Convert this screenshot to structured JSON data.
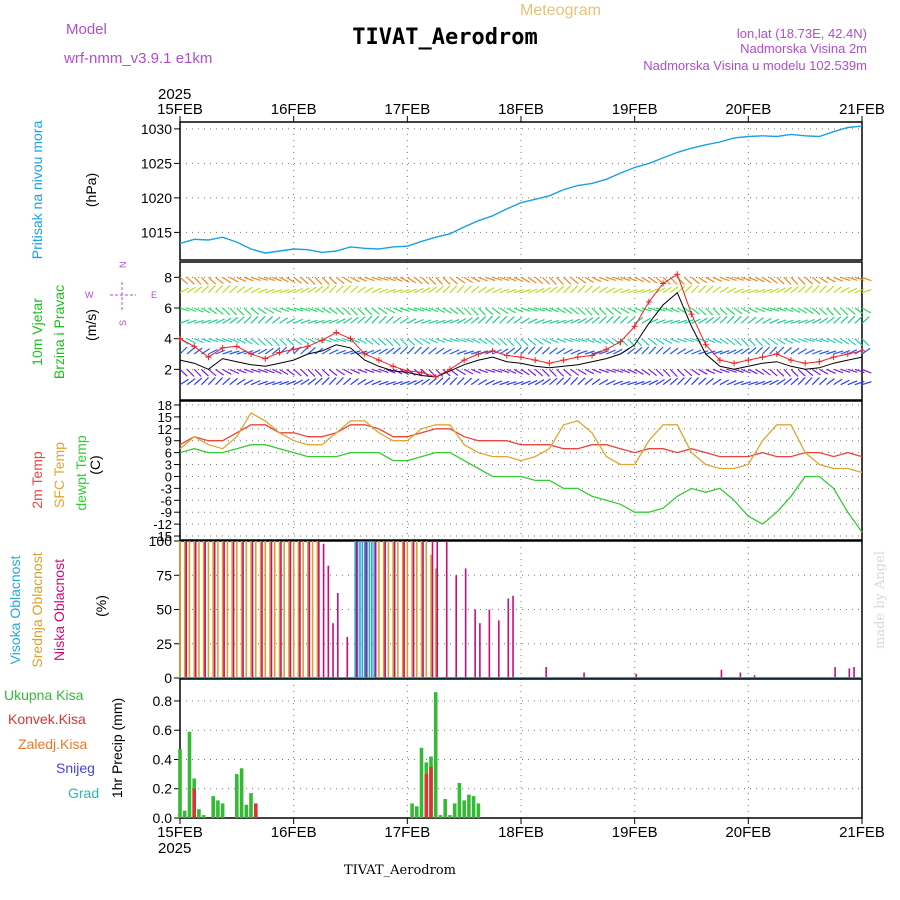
{
  "header": {
    "model_label": "Model",
    "model_name": "wrf-nmm_v3.9.1  e1km",
    "product": "Meteogram",
    "station": "TIVAT_Aerodrom",
    "lonlat": "lon,lat (18.73E, 42.4N)",
    "elevation": "Nadmorska Visina 2m",
    "model_elevation": "Nadmorska Visina u modelu 102.539m"
  },
  "footer": {
    "station": "TIVAT_Aerodrom",
    "credit": "made by Angel"
  },
  "time_axis": {
    "year": "2025",
    "days": [
      "15FEB",
      "16FEB",
      "17FEB",
      "18FEB",
      "19FEB",
      "20FEB",
      "21FEB"
    ],
    "range_hours": [
      0,
      144
    ]
  },
  "colors": {
    "pressure": "#1ba1e2",
    "t2m": "#e8453c",
    "sfc": "#e0a630",
    "dewpt": "#33cc33",
    "high_cloud": "#2aa7d6",
    "mid_cloud": "#d8a12e",
    "low_cloud": "#cc0a78",
    "total_precip": "#33bb33",
    "conv_precip": "#dd3333",
    "frozen_precip": "#ee7722",
    "snow": "#4444dd",
    "graupel": "#22bbbb",
    "purple_text": "#b04cd4",
    "wind_gust": "#ee2222",
    "wind_mean": "#000000"
  },
  "panels": {
    "pressure": {
      "label": "Pritisak na nivou mora",
      "unit": "(hPa)"
    },
    "wind": {
      "label1": "10m Vjetar",
      "label2": "Brzina i Pravac",
      "unit": "(m/s)",
      "compass": {
        "n": "N",
        "s": "S",
        "w": "W",
        "e": "E"
      }
    },
    "temp": {
      "label1": "2m Temp",
      "label2": "SFC Temp",
      "label3": "dewpt Temp",
      "unit": "(C)"
    },
    "cloud": {
      "label1": "Visoka Oblacnost",
      "label2": "Srednja Oblacnost",
      "label3": "Niska Oblacnost",
      "unit": "(%)"
    },
    "precip": {
      "legend": [
        "Ukupna Kisa",
        "Konvek.Kisa",
        "Zaledj.Kisa",
        "Snijeg",
        "Grad"
      ],
      "unit": "1hr Precip (mm)"
    }
  },
  "chart_data": [
    {
      "type": "line",
      "panel": "pressure",
      "xunit": "hours since 15FEB 00UTC",
      "ylim": [
        1011,
        1031
      ],
      "yticks": [
        1015,
        1020,
        1025,
        1030
      ],
      "x": [
        0,
        3,
        6,
        9,
        12,
        15,
        18,
        21,
        24,
        27,
        30,
        33,
        36,
        39,
        42,
        45,
        48,
        51,
        54,
        57,
        60,
        63,
        66,
        69,
        72,
        75,
        78,
        81,
        84,
        87,
        90,
        93,
        96,
        99,
        102,
        105,
        108,
        111,
        114,
        117,
        120,
        123,
        126,
        129,
        132,
        135,
        138,
        141,
        144
      ],
      "series": [
        {
          "name": "",
          "color_key": "pressure",
          "values": [
            1013.4,
            1014.0,
            1013.9,
            1014.3,
            1013.6,
            1012.6,
            1012.0,
            1012.3,
            1012.6,
            1012.5,
            1012.1,
            1012.3,
            1012.9,
            1012.7,
            1012.6,
            1012.9,
            1013.0,
            1013.7,
            1014.3,
            1014.8,
            1015.8,
            1016.7,
            1017.4,
            1018.4,
            1019.3,
            1019.8,
            1020.3,
            1021.2,
            1021.8,
            1022.1,
            1022.7,
            1023.6,
            1024.4,
            1025.0,
            1025.8,
            1026.6,
            1027.2,
            1027.7,
            1028.1,
            1028.7,
            1028.9,
            1029.0,
            1028.9,
            1029.2,
            1029.0,
            1028.9,
            1029.6,
            1030.2,
            1030.4
          ]
        }
      ]
    },
    {
      "type": "line",
      "panel": "wind",
      "ylim": [
        0,
        9
      ],
      "yticks": [
        2,
        4,
        6,
        8
      ],
      "x": [
        0,
        3,
        6,
        9,
        12,
        15,
        18,
        21,
        24,
        27,
        30,
        33,
        36,
        39,
        42,
        45,
        48,
        51,
        54,
        57,
        60,
        63,
        66,
        69,
        72,
        75,
        78,
        81,
        84,
        87,
        90,
        93,
        96,
        99,
        102,
        105,
        108,
        111,
        114,
        117,
        120,
        123,
        126,
        129,
        132,
        135,
        138,
        141,
        144
      ],
      "series": [
        {
          "name": "",
          "color_key": "wind_mean",
          "values": [
            2.6,
            2.4,
            2.0,
            2.7,
            2.5,
            2.3,
            2.2,
            2.4,
            2.6,
            3.0,
            3.2,
            3.6,
            3.4,
            2.6,
            2.2,
            1.9,
            1.8,
            1.6,
            1.5,
            1.9,
            2.3,
            2.6,
            2.8,
            2.5,
            2.4,
            2.2,
            2.1,
            2.2,
            2.3,
            2.5,
            2.7,
            3.0,
            3.6,
            5.0,
            6.2,
            7.0,
            4.8,
            3.0,
            2.2,
            2.0,
            2.2,
            2.4,
            2.5,
            2.2,
            2.0,
            2.1,
            2.4,
            2.6,
            2.8
          ]
        },
        {
          "name": "",
          "color_key": "wind_gust",
          "values": [
            4.0,
            3.5,
            2.8,
            3.4,
            3.5,
            3.0,
            2.7,
            3.1,
            3.3,
            3.5,
            3.9,
            4.4,
            4.0,
            3.0,
            2.6,
            2.2,
            1.9,
            1.8,
            1.5,
            2.0,
            2.6,
            3.0,
            3.2,
            2.9,
            2.8,
            2.6,
            2.4,
            2.6,
            2.8,
            2.9,
            3.3,
            3.8,
            4.8,
            6.4,
            7.6,
            8.2,
            5.6,
            3.6,
            2.6,
            2.4,
            2.6,
            2.8,
            3.0,
            2.6,
            2.4,
            2.5,
            2.8,
            3.0,
            3.2
          ]
        }
      ],
      "arrow_rows_ms": [
        1,
        2,
        3,
        4,
        5,
        6,
        7,
        8
      ]
    },
    {
      "type": "line",
      "panel": "temp",
      "ylim": [
        -16,
        19
      ],
      "yticks": [
        -15,
        -12,
        -9,
        -6,
        -3,
        0,
        3,
        6,
        9,
        12,
        15,
        18
      ],
      "x": [
        0,
        3,
        6,
        9,
        12,
        15,
        18,
        21,
        24,
        27,
        30,
        33,
        36,
        39,
        42,
        45,
        48,
        51,
        54,
        57,
        60,
        63,
        66,
        69,
        72,
        75,
        78,
        81,
        84,
        87,
        90,
        93,
        96,
        99,
        102,
        105,
        108,
        111,
        114,
        117,
        120,
        123,
        126,
        129,
        132,
        135,
        138,
        141,
        144
      ],
      "series": [
        {
          "name": "2m Temp",
          "color_key": "t2m",
          "values": [
            8,
            10,
            9,
            9,
            11,
            13,
            13,
            11,
            11,
            10,
            10,
            11,
            13,
            13,
            12,
            10,
            10,
            11,
            12,
            12,
            10,
            9,
            9,
            9,
            8,
            8,
            8,
            7,
            7,
            8,
            8,
            7,
            6,
            7,
            7,
            6,
            7,
            6,
            5,
            5,
            5,
            6,
            5,
            5,
            6,
            6,
            5,
            6,
            5
          ]
        },
        {
          "name": "SFC Temp",
          "color_key": "sfc",
          "values": [
            7,
            10,
            8,
            7,
            10,
            16,
            14,
            11,
            9,
            8,
            8,
            11,
            14,
            14,
            11,
            9,
            9,
            12,
            13,
            13,
            8,
            6,
            5,
            5,
            4,
            5,
            7,
            13,
            14,
            11,
            5,
            3,
            3,
            9,
            13,
            13,
            6,
            3,
            2,
            2,
            3,
            9,
            13,
            13,
            6,
            3,
            2,
            2,
            1
          ]
        },
        {
          "name": "dewpt Temp",
          "color_key": "dewpt",
          "values": [
            6,
            7,
            6,
            6,
            7,
            8,
            8,
            7,
            6,
            5,
            5,
            5,
            6,
            6,
            6,
            4,
            4,
            5,
            6,
            6,
            4,
            2,
            0,
            0,
            0,
            -1,
            -1,
            -3,
            -3,
            -5,
            -6,
            -7,
            -9,
            -9,
            -8,
            -5,
            -3,
            -4,
            -3,
            -6,
            -10,
            -12,
            -9,
            -5,
            0,
            0,
            -3,
            -9,
            -14
          ]
        }
      ]
    },
    {
      "type": "bar",
      "panel": "cloud",
      "ylim": [
        0,
        100
      ],
      "yticks": [
        0,
        25,
        50,
        75,
        100
      ],
      "series": [
        {
          "name": "Visoka Oblacnost",
          "color_key": "high_cloud",
          "x": [
            37,
            37.5,
            38,
            38.5,
            39,
            39.5,
            40,
            40.5,
            41
          ],
          "values": [
            100,
            100,
            100,
            100,
            100,
            100,
            100,
            100,
            100
          ]
        },
        {
          "name": "Srednja Oblacnost",
          "color_key": "mid_cloud",
          "x": [
            0,
            1,
            2,
            3,
            4,
            5,
            6,
            7,
            8,
            9,
            10,
            11,
            12,
            13,
            14,
            15,
            16,
            17,
            18,
            19,
            20,
            21,
            22,
            23,
            24,
            25,
            26,
            27,
            28,
            29,
            42,
            43,
            44,
            45,
            46,
            47,
            48,
            49,
            50,
            51,
            52,
            53,
            54
          ],
          "values": [
            100,
            100,
            100,
            100,
            100,
            100,
            100,
            100,
            100,
            100,
            100,
            100,
            100,
            100,
            100,
            100,
            100,
            100,
            100,
            100,
            100,
            100,
            100,
            100,
            100,
            100,
            100,
            100,
            100,
            100,
            100,
            100,
            100,
            100,
            100,
            100,
            100,
            100,
            100,
            100,
            100,
            90,
            80
          ]
        },
        {
          "name": "Niska Oblacnost",
          "color_key": "low_cloud",
          "x": [
            1,
            3,
            5,
            7,
            9,
            11,
            13,
            15,
            17,
            19,
            21,
            23,
            25,
            27,
            29,
            30,
            31,
            32,
            33,
            35,
            37,
            39,
            41,
            43,
            45,
            47,
            49,
            51,
            53,
            54,
            56,
            58,
            60,
            62,
            63,
            65,
            67,
            69,
            70,
            77,
            85,
            96,
            114,
            118,
            121,
            138,
            141,
            142
          ],
          "values": [
            100,
            100,
            100,
            100,
            100,
            100,
            100,
            100,
            100,
            100,
            100,
            100,
            100,
            100,
            100,
            98,
            82,
            40,
            62,
            30,
            100,
            100,
            100,
            100,
            100,
            100,
            100,
            100,
            100,
            100,
            100,
            75,
            80,
            50,
            40,
            50,
            42,
            58,
            60,
            8,
            4,
            3,
            6,
            4,
            2,
            8,
            7,
            8
          ]
        }
      ]
    },
    {
      "type": "bar",
      "panel": "precip",
      "ylim": [
        0,
        0.95
      ],
      "yticks": [
        0.0,
        0.2,
        0.4,
        0.6,
        0.8
      ],
      "series": [
        {
          "name": "Ukupna Kisa",
          "color_key": "total_precip",
          "x": [
            0,
            1,
            2,
            3,
            4,
            5,
            7,
            8,
            9,
            12,
            13,
            14,
            15,
            16,
            49,
            50,
            51,
            52,
            53,
            54,
            55,
            56,
            57,
            58,
            59,
            60,
            61,
            62,
            63
          ],
          "values": [
            0.47,
            0.05,
            0.59,
            0.27,
            0.06,
            0.02,
            0.15,
            0.12,
            0.1,
            0.3,
            0.34,
            0.09,
            0.17,
            0.04,
            0.1,
            0.08,
            0.48,
            0.38,
            0.42,
            0.86,
            0.02,
            0.13,
            0.02,
            0.1,
            0.24,
            0.12,
            0.16,
            0.15,
            0.1
          ]
        },
        {
          "name": "Konvek.Kisa",
          "color_key": "conv_precip",
          "x": [
            3,
            16,
            52,
            53
          ],
          "values": [
            0.2,
            0.1,
            0.3,
            0.35
          ]
        },
        {
          "name": "Zaledj.Kisa",
          "color_key": "frozen_precip",
          "x": [],
          "values": []
        },
        {
          "name": "Snijeg",
          "color_key": "snow",
          "x": [],
          "values": []
        },
        {
          "name": "Grad",
          "color_key": "graupel",
          "x": [],
          "values": []
        }
      ]
    }
  ]
}
